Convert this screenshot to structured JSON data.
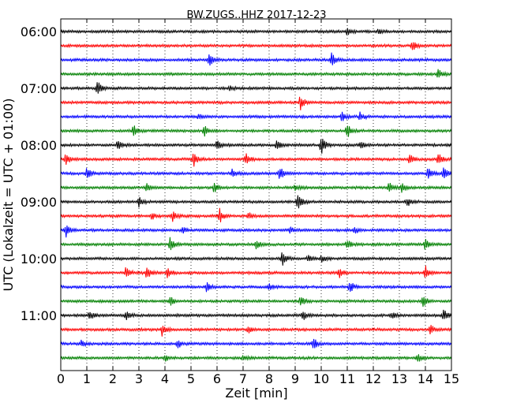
{
  "chart_data": {
    "type": "line",
    "title": "BW.ZUGS..HHZ 2017-12-23",
    "xlabel": "Zeit  [min]",
    "ylabel": "UTC (Lokalzeit = UTC + 01:00)",
    "xlim": [
      0,
      15
    ],
    "x_ticks": [
      "0",
      "1",
      "2",
      "3",
      "4",
      "5",
      "6",
      "7",
      "8",
      "9",
      "10",
      "11",
      "12",
      "13",
      "14",
      "15"
    ],
    "y_tick_labels": [
      "06:00",
      "07:00",
      "08:00",
      "09:00",
      "10:00",
      "11:00"
    ],
    "grid": true,
    "trace_minutes": 15,
    "trace_colors": [
      "#000000",
      "#ff0000",
      "#0000ff",
      "#008000"
    ],
    "traces": [
      {
        "events": [
          {
            "x": 11.0,
            "a": 0.3
          },
          {
            "x": 12.2,
            "a": 0.25
          }
        ]
      },
      {
        "events": [
          {
            "x": 13.5,
            "a": 0.45
          }
        ]
      },
      {
        "events": [
          {
            "x": 5.7,
            "a": 0.55
          },
          {
            "x": 10.4,
            "a": 0.6
          }
        ]
      },
      {
        "events": [
          {
            "x": 14.5,
            "a": 0.5
          }
        ]
      },
      {
        "events": [
          {
            "x": 1.4,
            "a": 0.75
          },
          {
            "x": 6.5,
            "a": 0.2
          }
        ]
      },
      {
        "events": [
          {
            "x": 9.2,
            "a": 0.75
          }
        ]
      },
      {
        "events": [
          {
            "x": 10.8,
            "a": 0.45
          },
          {
            "x": 11.5,
            "a": 0.4
          },
          {
            "x": 5.3,
            "a": 0.2
          }
        ]
      },
      {
        "events": [
          {
            "x": 2.8,
            "a": 0.55
          },
          {
            "x": 5.5,
            "a": 0.55
          },
          {
            "x": 11.0,
            "a": 0.7
          }
        ]
      },
      {
        "events": [
          {
            "x": 2.2,
            "a": 0.55
          },
          {
            "x": 6.0,
            "a": 0.45
          },
          {
            "x": 8.3,
            "a": 0.45
          },
          {
            "x": 10.0,
            "a": 0.8
          },
          {
            "x": 11.5,
            "a": 0.35
          }
        ]
      },
      {
        "events": [
          {
            "x": 0.2,
            "a": 0.55
          },
          {
            "x": 5.1,
            "a": 0.6
          },
          {
            "x": 7.1,
            "a": 0.55
          },
          {
            "x": 13.4,
            "a": 0.45
          },
          {
            "x": 14.5,
            "a": 0.55
          }
        ]
      },
      {
        "events": [
          {
            "x": 1.0,
            "a": 0.55
          },
          {
            "x": 6.6,
            "a": 0.45
          },
          {
            "x": 8.4,
            "a": 0.65
          },
          {
            "x": 14.1,
            "a": 0.55
          },
          {
            "x": 14.7,
            "a": 0.6
          }
        ]
      },
      {
        "events": [
          {
            "x": 3.3,
            "a": 0.4
          },
          {
            "x": 5.9,
            "a": 0.6
          },
          {
            "x": 12.6,
            "a": 0.55
          },
          {
            "x": 13.1,
            "a": 0.4
          },
          {
            "x": 9.0,
            "a": 0.3
          }
        ]
      },
      {
        "events": [
          {
            "x": 3.0,
            "a": 0.4
          },
          {
            "x": 9.1,
            "a": 0.95
          },
          {
            "x": 13.3,
            "a": 0.4
          }
        ]
      },
      {
        "events": [
          {
            "x": 4.3,
            "a": 0.55
          },
          {
            "x": 6.1,
            "a": 0.65
          },
          {
            "x": 7.2,
            "a": 0.35
          },
          {
            "x": 3.5,
            "a": 0.35
          }
        ]
      },
      {
        "events": [
          {
            "x": 0.2,
            "a": 0.65
          },
          {
            "x": 4.7,
            "a": 0.3
          },
          {
            "x": 8.8,
            "a": 0.3
          },
          {
            "x": 11.3,
            "a": 0.3
          }
        ]
      },
      {
        "events": [
          {
            "x": 4.2,
            "a": 0.6
          },
          {
            "x": 7.5,
            "a": 0.45
          },
          {
            "x": 11.0,
            "a": 0.45
          },
          {
            "x": 14.0,
            "a": 0.55
          }
        ]
      },
      {
        "events": [
          {
            "x": 8.5,
            "a": 0.7
          },
          {
            "x": 9.5,
            "a": 0.4
          },
          {
            "x": 10.0,
            "a": 0.35
          }
        ]
      },
      {
        "events": [
          {
            "x": 2.5,
            "a": 0.55
          },
          {
            "x": 3.3,
            "a": 0.65
          },
          {
            "x": 4.1,
            "a": 0.5
          },
          {
            "x": 10.7,
            "a": 0.45
          },
          {
            "x": 14.0,
            "a": 0.6
          }
        ]
      },
      {
        "events": [
          {
            "x": 5.6,
            "a": 0.45
          },
          {
            "x": 11.1,
            "a": 0.65
          },
          {
            "x": 8.0,
            "a": 0.25
          }
        ]
      },
      {
        "events": [
          {
            "x": 4.2,
            "a": 0.5
          },
          {
            "x": 9.2,
            "a": 0.55
          },
          {
            "x": 13.9,
            "a": 0.6
          }
        ]
      },
      {
        "events": [
          {
            "x": 1.1,
            "a": 0.5
          },
          {
            "x": 2.5,
            "a": 0.45
          },
          {
            "x": 9.3,
            "a": 0.45
          },
          {
            "x": 12.7,
            "a": 0.3
          },
          {
            "x": 14.7,
            "a": 0.55
          }
        ]
      },
      {
        "events": [
          {
            "x": 3.9,
            "a": 0.65
          },
          {
            "x": 7.2,
            "a": 0.3
          },
          {
            "x": 14.2,
            "a": 0.45
          }
        ]
      },
      {
        "events": [
          {
            "x": 0.8,
            "a": 0.3
          },
          {
            "x": 4.5,
            "a": 0.4
          },
          {
            "x": 9.7,
            "a": 0.55
          }
        ]
      },
      {
        "events": [
          {
            "x": 4.0,
            "a": 0.35
          },
          {
            "x": 7.0,
            "a": 0.25
          },
          {
            "x": 13.7,
            "a": 0.5
          }
        ]
      }
    ]
  }
}
